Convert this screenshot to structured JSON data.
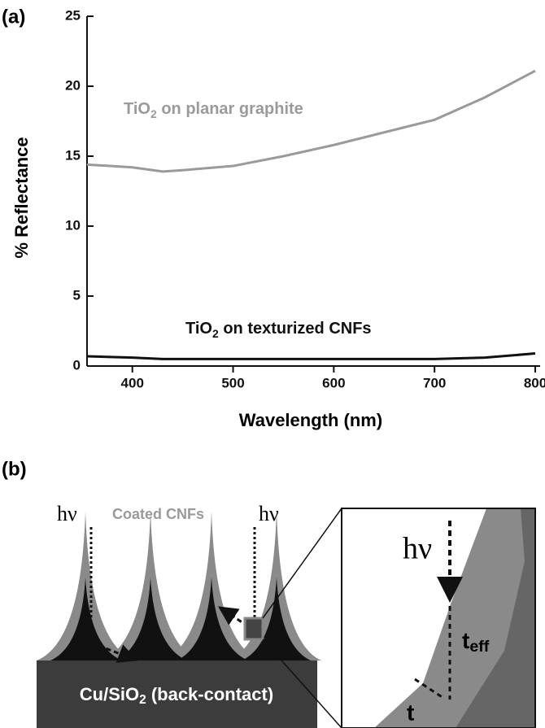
{
  "chart_data": {
    "type": "line",
    "panel_label": "(a)",
    "x_label": "Wavelength (nm)",
    "y_label": "% Reflectance",
    "x": [
      355,
      400,
      430,
      450,
      500,
      550,
      600,
      650,
      700,
      750,
      800
    ],
    "series": [
      {
        "name": "TiO2 on planar graphite",
        "color": "#9a9a9a",
        "values": [
          14.4,
          14.2,
          13.9,
          14.0,
          14.3,
          15.0,
          15.8,
          16.7,
          17.6,
          19.2,
          21.1
        ]
      },
      {
        "name": "TiO2 on texturized CNFs",
        "color": "#111111",
        "values": [
          0.7,
          0.6,
          0.5,
          0.5,
          0.5,
          0.5,
          0.5,
          0.5,
          0.5,
          0.6,
          0.9
        ]
      }
    ],
    "xlim": [
      355,
      800
    ],
    "xticks": [
      400,
      500,
      600,
      700,
      800
    ],
    "ylim": [
      0,
      25
    ],
    "yticks": [
      0,
      5,
      10,
      15,
      20,
      25
    ]
  },
  "diagram": {
    "panel_label": "(b)",
    "photon_1": "hν",
    "photon_2": "hν",
    "photon_3": "hν",
    "coating_label": "Coated CNFs",
    "substrate_label": "Cu/SiO2 (back-contact)",
    "t_eff_label": "teff",
    "t_label": "t"
  }
}
